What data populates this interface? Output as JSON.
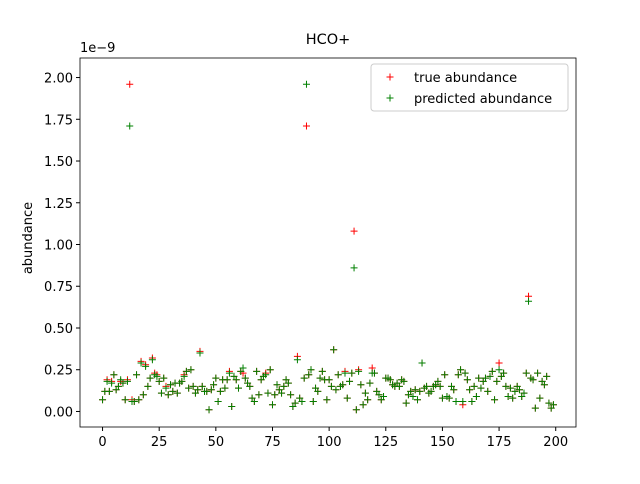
{
  "chart_data": {
    "type": "scatter",
    "title": "HCO+",
    "ylabel": "abundance",
    "y_offset_label": "1e−9",
    "xlim": [
      -9.95,
      208.95
    ],
    "xticks": [
      0,
      25,
      50,
      75,
      100,
      125,
      150,
      175,
      200
    ],
    "ylim": [
      -0.093,
      2.117
    ],
    "yticks": [
      {
        "value": 0,
        "label": "0.00"
      },
      {
        "value": 0.25,
        "label": "0.25"
      },
      {
        "value": 0.5,
        "label": "0.50"
      },
      {
        "value": 0.75,
        "label": "0.75"
      },
      {
        "value": 1,
        "label": "1.00"
      },
      {
        "value": 1.25,
        "label": "1.25"
      },
      {
        "value": 1.5,
        "label": "1.50"
      },
      {
        "value": 1.75,
        "label": "1.75"
      },
      {
        "value": 2,
        "label": "2.00"
      }
    ],
    "legend": "upper right",
    "x": [
      0,
      1,
      2,
      3,
      4,
      5,
      6,
      7,
      8,
      9,
      10,
      11,
      12,
      13,
      14,
      15,
      16,
      17,
      18,
      19,
      20,
      21,
      22,
      23,
      24,
      25,
      26,
      27,
      28,
      29,
      30,
      31,
      32,
      33,
      34,
      35,
      36,
      37,
      38,
      39,
      40,
      41,
      42,
      43,
      44,
      45,
      46,
      47,
      48,
      49,
      50,
      51,
      52,
      53,
      54,
      55,
      56,
      57,
      58,
      59,
      60,
      61,
      62,
      63,
      64,
      65,
      66,
      67,
      68,
      69,
      70,
      71,
      72,
      73,
      74,
      75,
      76,
      77,
      78,
      79,
      80,
      81,
      82,
      83,
      84,
      85,
      86,
      87,
      88,
      89,
      90,
      91,
      92,
      93,
      94,
      95,
      96,
      97,
      98,
      99,
      100,
      101,
      102,
      103,
      104,
      105,
      106,
      107,
      108,
      109,
      110,
      111,
      112,
      113,
      114,
      115,
      116,
      117,
      118,
      119,
      120,
      121,
      122,
      123,
      124,
      125,
      126,
      127,
      128,
      129,
      130,
      131,
      132,
      133,
      134,
      135,
      136,
      137,
      138,
      139,
      140,
      141,
      142,
      143,
      144,
      145,
      146,
      147,
      148,
      149,
      150,
      151,
      152,
      153,
      154,
      155,
      156,
      157,
      158,
      159,
      160,
      161,
      162,
      163,
      164,
      165,
      166,
      167,
      168,
      169,
      170,
      171,
      172,
      173,
      174,
      175,
      176,
      177,
      178,
      179,
      180,
      181,
      182,
      183,
      184,
      185,
      186,
      187,
      188,
      189,
      190,
      191,
      192,
      193,
      194,
      195,
      196,
      197,
      198,
      199
    ],
    "series": [
      {
        "name": "true abundance",
        "color": "#ff0000",
        "values": [
          0.07,
          0.12,
          0.19,
          0.12,
          0.18,
          0.22,
          0.13,
          0.15,
          0.18,
          0.17,
          0.07,
          0.19,
          1.96,
          0.07,
          0.06,
          0.22,
          0.07,
          0.3,
          0.1,
          0.28,
          0.15,
          0.2,
          0.32,
          0.23,
          0.22,
          0.18,
          0.11,
          0.2,
          0.15,
          0.1,
          0.16,
          0.12,
          0.17,
          0.11,
          0.17,
          0.18,
          0.22,
          0.24,
          0.14,
          0.25,
          0.15,
          0.11,
          0.13,
          0.36,
          0.15,
          0.12,
          0.12,
          0.01,
          0.13,
          0.16,
          0.2,
          0.06,
          0.12,
          0.19,
          0.14,
          0.19,
          0.24,
          0.03,
          0.21,
          0.19,
          0.14,
          0.24,
          0.23,
          0.2,
          0.17,
          0.15,
          0.08,
          0.06,
          0.24,
          0.1,
          0.19,
          0.21,
          0.23,
          0.11,
          0.25,
          0.04,
          0.1,
          0.16,
          0.13,
          0.11,
          0.15,
          0.19,
          0.17,
          0.1,
          0.03,
          0.05,
          0.33,
          0.08,
          0.06,
          0.2,
          1.71,
          0.22,
          0.25,
          0.06,
          0.14,
          0.12,
          0.2,
          0.24,
          0.19,
          0.07,
          0.19,
          0.15,
          0.37,
          0.13,
          0.22,
          0.15,
          0.16,
          0.24,
          0.08,
          0.18,
          0.23,
          1.08,
          0.01,
          0.25,
          0.16,
          0.04,
          0.11,
          0.07,
          0.17,
          0.26,
          0.23,
          0.12,
          0.1,
          0.07,
          0.09,
          0.2,
          0.2,
          0.19,
          0.16,
          0.15,
          0.17,
          0.15,
          0.19,
          0.18,
          0.05,
          0.1,
          0.12,
          0.09,
          0.13,
          0.07,
          0.12,
          0.29,
          0.14,
          0.15,
          0.11,
          0.12,
          0.15,
          0.16,
          0.18,
          0.15,
          0.08,
          0.22,
          0.09,
          0.08,
          0.15,
          0.13,
          0.06,
          0.22,
          0.25,
          0.04,
          0.23,
          0.19,
          0.13,
          0.06,
          0.15,
          0.09,
          0.2,
          0.14,
          0.18,
          0.2,
          0.12,
          0.21,
          0.24,
          0.07,
          0.18,
          0.29,
          0.21,
          0.23,
          0.15,
          0.09,
          0.14,
          0.08,
          0.12,
          0.15,
          0.13,
          0.09,
          0.11,
          0.23,
          0.69,
          0.2,
          0.19,
          0.02,
          0.23,
          0.08,
          0.18,
          0.16,
          0.21,
          0.05,
          0.02,
          0.04
        ]
      },
      {
        "name": "predicted abundance",
        "color": "#008000",
        "values": [
          0.07,
          0.12,
          0.18,
          0.12,
          0.17,
          0.22,
          0.13,
          0.15,
          0.19,
          0.17,
          0.07,
          0.18,
          1.71,
          0.06,
          0.06,
          0.22,
          0.07,
          0.29,
          0.1,
          0.27,
          0.15,
          0.2,
          0.31,
          0.22,
          0.21,
          0.18,
          0.11,
          0.2,
          0.14,
          0.1,
          0.16,
          0.12,
          0.17,
          0.11,
          0.17,
          0.18,
          0.21,
          0.24,
          0.14,
          0.25,
          0.15,
          0.11,
          0.13,
          0.35,
          0.15,
          0.12,
          0.12,
          0.01,
          0.13,
          0.16,
          0.2,
          0.06,
          0.12,
          0.19,
          0.14,
          0.19,
          0.23,
          0.03,
          0.21,
          0.19,
          0.14,
          0.24,
          0.26,
          0.2,
          0.17,
          0.15,
          0.08,
          0.06,
          0.24,
          0.1,
          0.19,
          0.21,
          0.22,
          0.11,
          0.25,
          0.04,
          0.1,
          0.16,
          0.13,
          0.11,
          0.15,
          0.19,
          0.17,
          0.1,
          0.03,
          0.05,
          0.31,
          0.08,
          0.06,
          0.2,
          1.96,
          0.22,
          0.25,
          0.06,
          0.14,
          0.12,
          0.2,
          0.24,
          0.19,
          0.07,
          0.19,
          0.15,
          0.37,
          0.13,
          0.22,
          0.15,
          0.16,
          0.23,
          0.08,
          0.18,
          0.23,
          0.86,
          0.01,
          0.24,
          0.16,
          0.04,
          0.11,
          0.07,
          0.17,
          0.23,
          0.23,
          0.12,
          0.1,
          0.07,
          0.09,
          0.2,
          0.2,
          0.19,
          0.16,
          0.15,
          0.17,
          0.15,
          0.19,
          0.18,
          0.05,
          0.1,
          0.12,
          0.09,
          0.13,
          0.07,
          0.12,
          0.29,
          0.14,
          0.15,
          0.11,
          0.12,
          0.15,
          0.16,
          0.18,
          0.15,
          0.08,
          0.22,
          0.09,
          0.08,
          0.15,
          0.13,
          0.06,
          0.22,
          0.25,
          0.06,
          0.23,
          0.19,
          0.13,
          0.06,
          0.15,
          0.09,
          0.2,
          0.14,
          0.18,
          0.2,
          0.12,
          0.21,
          0.24,
          0.07,
          0.18,
          0.25,
          0.21,
          0.23,
          0.15,
          0.09,
          0.14,
          0.08,
          0.12,
          0.15,
          0.13,
          0.09,
          0.11,
          0.23,
          0.66,
          0.2,
          0.19,
          0.02,
          0.23,
          0.08,
          0.18,
          0.16,
          0.21,
          0.05,
          0.02,
          0.04
        ]
      }
    ]
  }
}
